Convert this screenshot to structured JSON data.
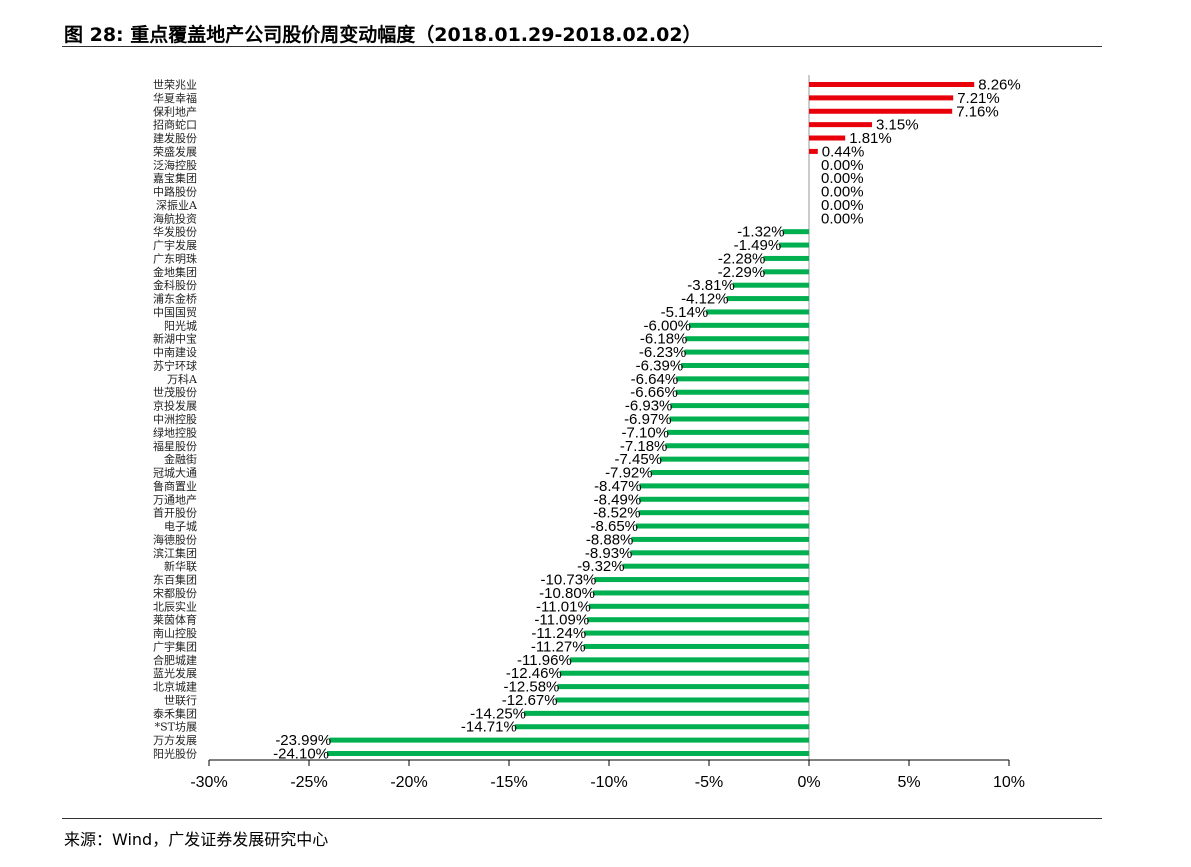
{
  "figure": {
    "title": "图 28:  重点覆盖地产公司股价周变动幅度（2018.01.29-2018.02.02）",
    "source": "来源：Wind，广发证券发展研究中心"
  },
  "chart_data": {
    "type": "bar",
    "orientation": "horizontal",
    "title": "",
    "xlabel": "",
    "ylabel": "",
    "xlim": [
      -30,
      10
    ],
    "xticks": [
      "-30%",
      "-25%",
      "-20%",
      "-15%",
      "-10%",
      "-5%",
      "0%",
      "5%",
      "10%"
    ],
    "xtick_values": [
      -30,
      -25,
      -20,
      -15,
      -10,
      -5,
      0,
      5,
      10
    ],
    "grid": false,
    "colors": {
      "positive": "#e8000b",
      "negative": "#00b050",
      "zero_line": "#999999"
    },
    "categories": [
      "世荣兆业",
      "华夏幸福",
      "保利地产",
      "招商蛇口",
      "建发股份",
      "荣盛发展",
      "泛海控股",
      "嘉宝集团",
      "中路股份",
      "深振业A",
      "海航投资",
      "华发股份",
      "广宇发展",
      "广东明珠",
      "金地集团",
      "金科股份",
      "浦东金桥",
      "中国国贸",
      "阳光城",
      "新湖中宝",
      "中南建设",
      "苏宁环球",
      "万科A",
      "世茂股份",
      "京投发展",
      "中洲控股",
      "绿地控股",
      "福星股份",
      "金融街",
      "冠城大通",
      "鲁商置业",
      "万通地产",
      "首开股份",
      "电子城",
      "海德股份",
      "滨江集团",
      "新华联",
      "东百集团",
      "宋都股份",
      "北辰实业",
      "莱茵体育",
      "南山控股",
      "广宇集团",
      "合肥城建",
      "蓝光发展",
      "北京城建",
      "世联行",
      "泰禾集团",
      "*ST坊展",
      "万方发展",
      "阳光股份"
    ],
    "values": [
      8.26,
      7.21,
      7.16,
      3.15,
      1.81,
      0.44,
      0.0,
      0.0,
      0.0,
      0.0,
      0.0,
      -1.32,
      -1.49,
      -2.28,
      -2.29,
      -3.81,
      -4.12,
      -5.14,
      -6.0,
      -6.18,
      -6.23,
      -6.39,
      -6.64,
      -6.66,
      -6.93,
      -6.97,
      -7.1,
      -7.18,
      -7.45,
      -7.92,
      -8.47,
      -8.49,
      -8.52,
      -8.65,
      -8.88,
      -8.93,
      -9.32,
      -10.73,
      -10.8,
      -11.01,
      -11.09,
      -11.24,
      -11.27,
      -11.96,
      -12.46,
      -12.58,
      -12.67,
      -14.25,
      -14.71,
      -23.99,
      -24.1
    ],
    "value_labels": [
      "8.26%",
      "7.21%",
      "7.16%",
      "3.15%",
      "1.81%",
      "0.44%",
      "0.00%",
      "0.00%",
      "0.00%",
      "0.00%",
      "0.00%",
      "-1.32%",
      "-1.49%",
      "-2.28%",
      "-2.29%",
      "-3.81%",
      "-4.12%",
      "-5.14%",
      "-6.00%",
      "-6.18%",
      "-6.23%",
      "-6.39%",
      "-6.64%",
      "-6.66%",
      "-6.93%",
      "-6.97%",
      "-7.10%",
      "-7.18%",
      "-7.45%",
      "-7.92%",
      "-8.47%",
      "-8.49%",
      "-8.52%",
      "-8.65%",
      "-8.88%",
      "-8.93%",
      "-9.32%",
      "-10.73%",
      "-10.80%",
      "-11.01%",
      "-11.09%",
      "-11.24%",
      "-11.27%",
      "-11.96%",
      "-12.46%",
      "-12.58%",
      "-12.67%",
      "-14.25%",
      "-14.71%",
      "-23.99%",
      "-24.10%"
    ]
  }
}
